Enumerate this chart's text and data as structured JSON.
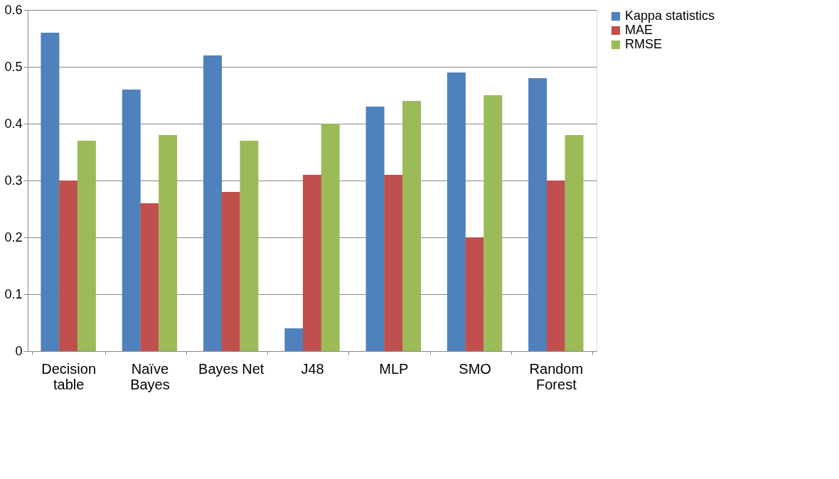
{
  "chart_data": {
    "type": "bar",
    "categories": [
      "Decision table",
      "Naïve Bayes",
      "Bayes Net",
      "J48",
      "MLP",
      "SMO",
      "Random Forest"
    ],
    "series": [
      {
        "name": "Kappa statistics",
        "color": "#4f81bd",
        "values": [
          0.56,
          0.46,
          0.52,
          0.04,
          0.43,
          0.49,
          0.48
        ]
      },
      {
        "name": "MAE",
        "color": "#c0504d",
        "values": [
          0.3,
          0.26,
          0.28,
          0.31,
          0.31,
          0.2,
          0.3
        ]
      },
      {
        "name": "RMSE",
        "color": "#9bbb59",
        "values": [
          0.37,
          0.38,
          0.37,
          0.4,
          0.44,
          0.45,
          0.38
        ]
      }
    ],
    "ylim": [
      0,
      0.6
    ],
    "yticks": [
      0,
      0.1,
      0.2,
      0.3,
      0.4,
      0.5,
      0.6
    ],
    "grid": "y",
    "legend": "right"
  }
}
